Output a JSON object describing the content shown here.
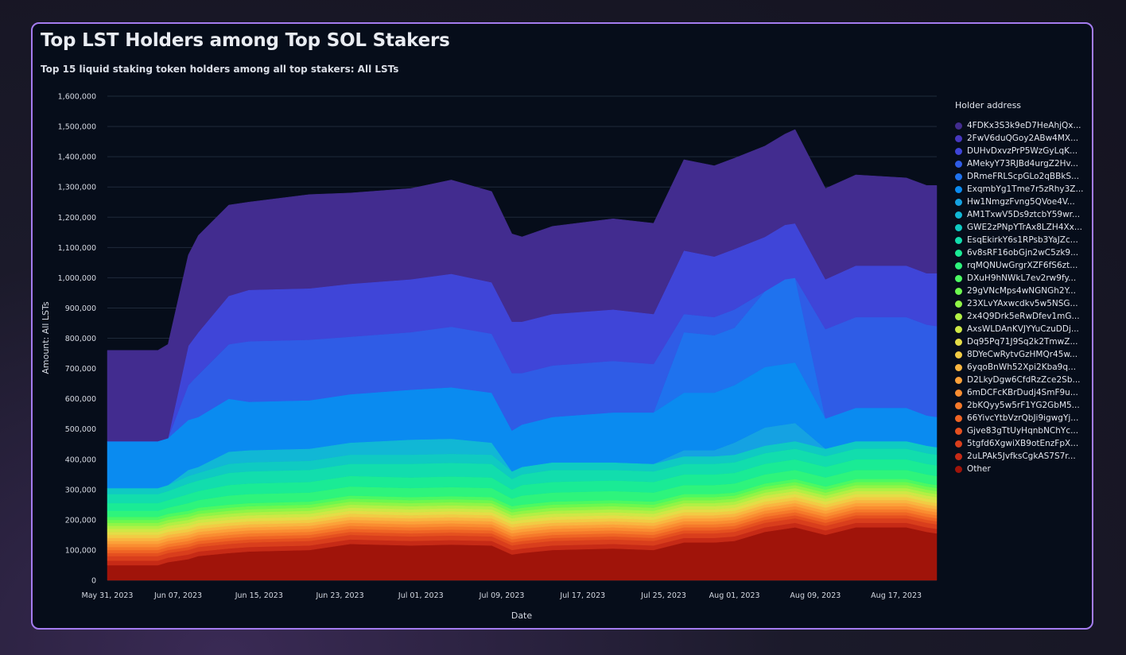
{
  "page": {
    "title": "Top LST Holders among Top SOL Stakers",
    "subtitle": "Top 15 liquid staking token holders among all top stakers: All LSTs"
  },
  "chart_data": {
    "type": "area",
    "stacked": true,
    "title": "Top LST Holders among Top SOL Stakers",
    "subtitle": "Top 15 liquid staking token holders among all top stakers: All LSTs",
    "xlabel": "Date",
    "ylabel": "Amount: All LSTs",
    "ylim": [
      0,
      1600000
    ],
    "grid": true,
    "legend_title": "Holder address",
    "legend_position": "right",
    "x_ticks": [
      "May 31, 2023",
      "Jun 07, 2023",
      "Jun 15, 2023",
      "Jun 23, 2023",
      "Jul 01, 2023",
      "Jul 09, 2023",
      "Jul 17, 2023",
      "Jul 25, 2023",
      "Aug 01, 2023",
      "Aug 09, 2023",
      "Aug 17, 2023"
    ],
    "y_ticks": [
      "0",
      "100,000",
      "200,000",
      "300,000",
      "400,000",
      "500,000",
      "600,000",
      "700,000",
      "800,000",
      "900,000",
      "1,000,000",
      "1,100,000",
      "1,200,000",
      "1,300,000",
      "1,400,000",
      "1,500,000",
      "1,600,000"
    ],
    "x": [
      "May 31, 2023",
      "Jun 05, 2023",
      "Jun 06, 2023",
      "Jun 08, 2023",
      "Jun 09, 2023",
      "Jun 12, 2023",
      "Jun 14, 2023",
      "Jun 20, 2023",
      "Jun 24, 2023",
      "Jun 30, 2023",
      "Jul 04, 2023",
      "Jul 08, 2023",
      "Jul 10, 2023",
      "Jul 11, 2023",
      "Jul 14, 2023",
      "Jul 20, 2023",
      "Jul 24, 2023",
      "Jul 27, 2023",
      "Jul 30, 2023",
      "Aug 01, 2023",
      "Aug 04, 2023",
      "Aug 06, 2023",
      "Aug 07, 2023",
      "Aug 10, 2023",
      "Aug 13, 2023",
      "Aug 18, 2023",
      "Aug 20, 2023",
      "Aug 21, 2023"
    ],
    "series": [
      {
        "name": "Other",
        "color": "#a0140a",
        "values": [
          50000,
          50000,
          60000,
          70000,
          80000,
          90000,
          95000,
          100000,
          120000,
          115000,
          118000,
          115000,
          85000,
          90000,
          100000,
          105000,
          100000,
          125000,
          125000,
          130000,
          160000,
          170000,
          175000,
          150000,
          175000,
          175000,
          160000,
          155000
        ]
      },
      {
        "name": "2uLPAk5JvfksCgkAS7S7r...",
        "color": "#c62a16",
        "values": [
          15000,
          15000,
          15000,
          15000,
          15000,
          15000,
          15000,
          15000,
          15000,
          15000,
          15000,
          15000,
          15000,
          15000,
          15000,
          15000,
          15000,
          15000,
          15000,
          15000,
          15000,
          15000,
          15000,
          15000,
          15000,
          15000,
          15000,
          15000
        ]
      },
      {
        "name": "5tgfd6XgwiXB9otEnzFpX...",
        "color": "#d93e1c",
        "values": [
          15000,
          15000,
          15000,
          15000,
          15000,
          15000,
          15000,
          15000,
          15000,
          15000,
          15000,
          15000,
          15000,
          15000,
          15000,
          15000,
          15000,
          15000,
          15000,
          15000,
          15000,
          15000,
          15000,
          15000,
          15000,
          15000,
          15000,
          15000
        ]
      },
      {
        "name": "Gjve83gTtUyHqnbNChYc...",
        "color": "#e5501f",
        "values": [
          10000,
          10000,
          10000,
          10000,
          10000,
          10000,
          10000,
          10000,
          10000,
          10000,
          10000,
          10000,
          10000,
          10000,
          10000,
          10000,
          10000,
          10000,
          10000,
          10000,
          10000,
          10000,
          10000,
          10000,
          10000,
          10000,
          10000,
          10000
        ]
      },
      {
        "name": "66YivcYtbVzrQbJi9igwgYj...",
        "color": "#ef6424",
        "values": [
          10000,
          10000,
          10000,
          10000,
          10000,
          10000,
          10000,
          10000,
          10000,
          10000,
          10000,
          10000,
          10000,
          10000,
          10000,
          10000,
          10000,
          10000,
          10000,
          10000,
          10000,
          10000,
          10000,
          10000,
          10000,
          10000,
          10000,
          10000
        ]
      },
      {
        "name": "2bKQyy5w5rF1YG2GbM5...",
        "color": "#f6792a",
        "values": [
          10000,
          10000,
          10000,
          10000,
          10000,
          10000,
          10000,
          10000,
          10000,
          10000,
          10000,
          10000,
          10000,
          10000,
          10000,
          10000,
          10000,
          10000,
          10000,
          10000,
          10000,
          10000,
          10000,
          10000,
          10000,
          10000,
          10000,
          10000
        ]
      },
      {
        "name": "6mDCFcKBrDudj4SmF9u...",
        "color": "#fa8d31",
        "values": [
          10000,
          10000,
          10000,
          10000,
          10000,
          10000,
          10000,
          10000,
          10000,
          10000,
          10000,
          10000,
          10000,
          10000,
          10000,
          10000,
          10000,
          10000,
          10000,
          10000,
          10000,
          10000,
          10000,
          10000,
          10000,
          10000,
          10000,
          10000
        ]
      },
      {
        "name": "D2LkyDgw6CfdRzZce2Sb...",
        "color": "#fca139",
        "values": [
          10000,
          10000,
          10000,
          10000,
          10000,
          10000,
          10000,
          10000,
          10000,
          10000,
          10000,
          10000,
          10000,
          10000,
          10000,
          10000,
          10000,
          10000,
          10000,
          10000,
          10000,
          10000,
          10000,
          10000,
          10000,
          10000,
          10000,
          10000
        ]
      },
      {
        "name": "6yqoBnWh52Xpi2Kba9q...",
        "color": "#f9b640",
        "values": [
          10000,
          10000,
          10000,
          10000,
          10000,
          10000,
          10000,
          10000,
          10000,
          10000,
          10000,
          10000,
          10000,
          10000,
          10000,
          10000,
          10000,
          10000,
          10000,
          10000,
          10000,
          10000,
          10000,
          10000,
          10000,
          10000,
          10000,
          10000
        ]
      },
      {
        "name": "8DYeCwRytvGzHMQr45w...",
        "color": "#f2cb44",
        "values": [
          10000,
          10000,
          10000,
          10000,
          10000,
          10000,
          10000,
          10000,
          10000,
          10000,
          10000,
          10000,
          10000,
          10000,
          10000,
          10000,
          10000,
          10000,
          10000,
          10000,
          10000,
          10000,
          10000,
          10000,
          10000,
          10000,
          10000,
          10000
        ]
      },
      {
        "name": "Dq95Pq71J9Sq2k2TmwZ...",
        "color": "#e5dd47",
        "values": [
          10000,
          10000,
          10000,
          10000,
          10000,
          10000,
          10000,
          10000,
          10000,
          10000,
          10000,
          10000,
          10000,
          10000,
          10000,
          10000,
          10000,
          10000,
          10000,
          10000,
          10000,
          10000,
          10000,
          10000,
          10000,
          10000,
          10000,
          10000
        ]
      },
      {
        "name": "AxsWLDAnKVJYYuCzuDDj...",
        "color": "#cfe846",
        "values": [
          10000,
          10000,
          10000,
          10000,
          10000,
          10000,
          10000,
          10000,
          10000,
          10000,
          10000,
          10000,
          10000,
          10000,
          10000,
          10000,
          10000,
          10000,
          10000,
          10000,
          10000,
          10000,
          10000,
          10000,
          10000,
          10000,
          10000,
          10000
        ]
      },
      {
        "name": "2x4Q9Drk5eRwDfev1mG...",
        "color": "#b2f045",
        "values": [
          10000,
          10000,
          10000,
          10000,
          10000,
          10000,
          10000,
          10000,
          10000,
          10000,
          10000,
          10000,
          10000,
          10000,
          10000,
          10000,
          10000,
          10000,
          10000,
          10000,
          10000,
          10000,
          10000,
          10000,
          10000,
          10000,
          10000,
          10000
        ]
      },
      {
        "name": "23XLvYAxwcdkv5w5NSG...",
        "color": "#90f547",
        "values": [
          10000,
          10000,
          10000,
          10000,
          10000,
          10000,
          10000,
          10000,
          10000,
          10000,
          10000,
          10000,
          10000,
          10000,
          10000,
          10000,
          10000,
          10000,
          10000,
          10000,
          10000,
          10000,
          10000,
          10000,
          10000,
          10000,
          10000,
          10000
        ]
      },
      {
        "name": "29gVNcMps4wNGNGh2Y...",
        "color": "#6df84f",
        "values": [
          10000,
          10000,
          10000,
          10000,
          10000,
          10000,
          10000,
          10000,
          10000,
          10000,
          10000,
          10000,
          10000,
          10000,
          10000,
          10000,
          10000,
          10000,
          10000,
          10000,
          10000,
          10000,
          10000,
          10000,
          10000,
          10000,
          10000,
          10000
        ]
      },
      {
        "name": "DXuH9hNWkL7ev2rw9fy...",
        "color": "#4cf962",
        "values": [
          10000,
          10000,
          10000,
          10000,
          10000,
          10000,
          10000,
          10000,
          10000,
          10000,
          10000,
          10000,
          10000,
          10000,
          10000,
          10000,
          10000,
          10000,
          10000,
          10000,
          10000,
          10000,
          10000,
          10000,
          10000,
          10000,
          10000,
          10000
        ]
      },
      {
        "name": "rqMQNUwGrgrXZF6fS6zt...",
        "color": "#2ef47c",
        "values": [
          20000,
          20000,
          20000,
          25000,
          25000,
          30000,
          30000,
          30000,
          30000,
          30000,
          30000,
          30000,
          25000,
          30000,
          30000,
          30000,
          30000,
          30000,
          30000,
          30000,
          30000,
          30000,
          30000,
          30000,
          30000,
          30000,
          30000,
          30000
        ]
      },
      {
        "name": "6v8sRF16obGjn2wC5zk9...",
        "color": "#1aeb95",
        "values": [
          25000,
          25000,
          25000,
          30000,
          30000,
          35000,
          35000,
          35000,
          35000,
          35000,
          35000,
          35000,
          30000,
          35000,
          35000,
          35000,
          35000,
          35000,
          35000,
          35000,
          35000,
          35000,
          35000,
          35000,
          35000,
          35000,
          35000,
          35000
        ]
      },
      {
        "name": "EsqEkirkY6s1RPsb3YaJZc...",
        "color": "#12ddad",
        "values": [
          30000,
          30000,
          30000,
          35000,
          35000,
          40000,
          40000,
          40000,
          40000,
          45000,
          45000,
          45000,
          35000,
          35000,
          40000,
          35000,
          35000,
          35000,
          35000,
          35000,
          35000,
          35000,
          35000,
          35000,
          35000,
          35000,
          35000,
          35000
        ]
      },
      {
        "name": "GWE2zPNpYTrAx8LZH4Xx...",
        "color": "#0fcac2",
        "values": [
          20000,
          20000,
          20000,
          25000,
          25000,
          30000,
          30000,
          30000,
          30000,
          30000,
          30000,
          30000,
          25000,
          25000,
          25000,
          25000,
          25000,
          25000,
          25000,
          25000,
          25000,
          25000,
          25000,
          25000,
          25000,
          25000,
          25000,
          25000
        ]
      },
      {
        "name": "AM1TxwV5Ds9ztcbY59wr...",
        "color": "#11b7d5",
        "values": [
          0,
          0,
          0,
          20000,
          20000,
          40000,
          40000,
          40000,
          40000,
          50000,
          50000,
          40000,
          0,
          0,
          0,
          0,
          0,
          0,
          0,
          0,
          0,
          0,
          0,
          0,
          0,
          0,
          0,
          0
        ]
      },
      {
        "name": "Hw1NmgzFvng5QVoe4V...",
        "color": "#15a2e2",
        "values": [
          0,
          0,
          0,
          0,
          0,
          0,
          0,
          0,
          0,
          0,
          0,
          0,
          0,
          0,
          0,
          0,
          0,
          20000,
          20000,
          40000,
          60000,
          60000,
          60000,
          0,
          0,
          0,
          0,
          0
        ]
      },
      {
        "name": "ExqmbYg1Tme7r5zRhy3Z...",
        "color": "#0a8bf0",
        "values": [
          155000,
          155000,
          155000,
          165000,
          165000,
          175000,
          160000,
          160000,
          160000,
          165000,
          170000,
          165000,
          135000,
          140000,
          150000,
          165000,
          170000,
          190000,
          190000,
          190000,
          200000,
          200000,
          200000,
          100000,
          110000,
          110000,
          100000,
          100000
        ]
      },
      {
        "name": "DRmeFRLScpGLo2qBBkS...",
        "color": "#1f72ee",
        "values": [
          0,
          0,
          0,
          0,
          0,
          0,
          0,
          0,
          0,
          0,
          0,
          0,
          0,
          0,
          0,
          0,
          0,
          200000,
          190000,
          190000,
          250000,
          280000,
          280000,
          0,
          0,
          0,
          0,
          0
        ]
      },
      {
        "name": "AMekyY73RJBd4urgZ2Hv...",
        "color": "#2f5ce6",
        "values": [
          0,
          0,
          0,
          115000,
          140000,
          180000,
          200000,
          200000,
          190000,
          190000,
          200000,
          195000,
          190000,
          170000,
          170000,
          170000,
          160000,
          60000,
          60000,
          60000,
          0,
          0,
          0,
          295000,
          300000,
          300000,
          300000,
          300000
        ]
      },
      {
        "name": "DUHvDxvzPrP5WzGyLqK...",
        "color": "#3f45d8",
        "values": [
          0,
          0,
          0,
          130000,
          140000,
          160000,
          170000,
          170000,
          175000,
          175000,
          175000,
          170000,
          170000,
          170000,
          170000,
          170000,
          165000,
          210000,
          200000,
          200000,
          180000,
          180000,
          180000,
          165000,
          170000,
          170000,
          170000,
          175000
        ]
      },
      {
        "name": "2FwV6duQGoy2ABw4MX...",
        "color": "#4738bf",
        "values": [
          0,
          0,
          0,
          0,
          0,
          0,
          0,
          0,
          0,
          0,
          0,
          0,
          0,
          0,
          0,
          0,
          0,
          0,
          0,
          0,
          0,
          0,
          0,
          0,
          0,
          0,
          0,
          0
        ]
      },
      {
        "name": "4FDKx3S3k9eD7HeAhjQx...",
        "color": "#422c8f",
        "values": [
          300000,
          300000,
          310000,
          300000,
          320000,
          300000,
          290000,
          310000,
          300000,
          300000,
          310000,
          300000,
          290000,
          280000,
          290000,
          300000,
          300000,
          300000,
          300000,
          300000,
          300000,
          300000,
          310000,
          300000,
          300000,
          290000,
          290000,
          290000
        ]
      }
    ]
  }
}
